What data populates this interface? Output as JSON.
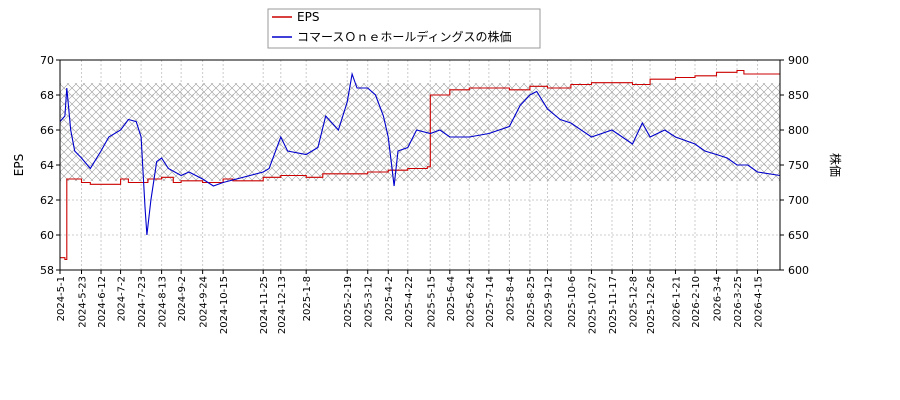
{
  "chart_data": {
    "type": "line",
    "title": "",
    "legend": {
      "placement": "top-center",
      "entries": [
        "EPS",
        "コマースＯｎｅホールディングスの株価"
      ]
    },
    "x_axis": {
      "start": "2024-5-1",
      "end": "2026-5-8",
      "ticks": [
        "2024-5-1",
        "2024-5-23",
        "2024-6-12",
        "2024-7-2",
        "2024-7-23",
        "2024-8-13",
        "2024-9-2",
        "2024-9-24",
        "2024-10-15",
        "2024-11-25",
        "2024-12-13",
        "2025-1-8",
        "2025-2-19",
        "2025-3-12",
        "2025-4-2",
        "2025-4-22",
        "2025-5-15",
        "2025-6-4",
        "2025-6-24",
        "2025-7-14",
        "2025-8-4",
        "2025-8-25",
        "2025-9-12",
        "2025-10-6",
        "2025-10-27",
        "2025-11-17",
        "2025-12-8",
        "2025-12-26",
        "2026-1-21",
        "2026-2-10",
        "2026-3-4",
        "2026-3-25",
        "2026-4-15"
      ]
    },
    "y_left": {
      "label": "EPS",
      "ylim": [
        58,
        70
      ],
      "ticks": [
        "58",
        "60",
        "62",
        "64",
        "66",
        "68",
        "70"
      ]
    },
    "y_right": {
      "label": "株価",
      "ylim": [
        600,
        900
      ],
      "ticks": [
        "600",
        "650",
        "700",
        "750",
        "800",
        "850",
        "900"
      ]
    },
    "band": {
      "axis": "right",
      "range": [
        727,
        867
      ]
    },
    "grid": true,
    "series": [
      {
        "name": "EPS",
        "axis": "left",
        "color": "#cc0000",
        "points": [
          [
            "2024-5-1",
            58.7
          ],
          [
            "2024-5-6",
            58.6
          ],
          [
            "2024-5-8",
            63.2
          ],
          [
            "2024-5-23",
            63.0
          ],
          [
            "2024-6-1",
            62.9
          ],
          [
            "2024-6-12",
            62.9
          ],
          [
            "2024-7-2",
            63.2
          ],
          [
            "2024-7-10",
            63.0
          ],
          [
            "2024-7-23",
            63.0
          ],
          [
            "2024-7-30",
            63.2
          ],
          [
            "2024-8-13",
            63.3
          ],
          [
            "2024-8-25",
            63.0
          ],
          [
            "2024-9-2",
            63.1
          ],
          [
            "2024-9-24",
            63.0
          ],
          [
            "2024-10-15",
            63.2
          ],
          [
            "2024-10-25",
            63.1
          ],
          [
            "2024-11-25",
            63.3
          ],
          [
            "2024-12-13",
            63.4
          ],
          [
            "2025-1-8",
            63.3
          ],
          [
            "2025-1-25",
            63.5
          ],
          [
            "2025-2-19",
            63.5
          ],
          [
            "2025-3-12",
            63.6
          ],
          [
            "2025-4-2",
            63.7
          ],
          [
            "2025-4-22",
            63.8
          ],
          [
            "2025-5-12",
            63.9
          ],
          [
            "2025-5-15",
            68.0
          ],
          [
            "2025-6-4",
            68.3
          ],
          [
            "2025-6-24",
            68.4
          ],
          [
            "2025-7-14",
            68.4
          ],
          [
            "2025-8-4",
            68.3
          ],
          [
            "2025-8-25",
            68.5
          ],
          [
            "2025-9-12",
            68.4
          ],
          [
            "2025-10-6",
            68.6
          ],
          [
            "2025-10-27",
            68.7
          ],
          [
            "2025-11-17",
            68.7
          ],
          [
            "2025-12-8",
            68.6
          ],
          [
            "2025-12-26",
            68.9
          ],
          [
            "2026-1-21",
            69.0
          ],
          [
            "2026-2-10",
            69.1
          ],
          [
            "2026-3-4",
            69.3
          ],
          [
            "2026-3-25",
            69.4
          ],
          [
            "2026-4-1",
            69.2
          ],
          [
            "2026-4-15",
            69.2
          ],
          [
            "2026-5-8",
            69.2
          ]
        ]
      },
      {
        "name": "コマースＯｎｅホールディングスの株価",
        "axis": "right",
        "color": "#0000cc",
        "points": [
          [
            "2024-5-1",
            812
          ],
          [
            "2024-5-6",
            820
          ],
          [
            "2024-5-8",
            860
          ],
          [
            "2024-5-12",
            800
          ],
          [
            "2024-5-16",
            770
          ],
          [
            "2024-5-23",
            760
          ],
          [
            "2024-6-1",
            745
          ],
          [
            "2024-6-12",
            770
          ],
          [
            "2024-6-20",
            790
          ],
          [
            "2024-7-2",
            800
          ],
          [
            "2024-7-10",
            815
          ],
          [
            "2024-7-18",
            812
          ],
          [
            "2024-7-23",
            790
          ],
          [
            "2024-7-27",
            690
          ],
          [
            "2024-7-29",
            650
          ],
          [
            "2024-8-2",
            700
          ],
          [
            "2024-8-8",
            755
          ],
          [
            "2024-8-13",
            760
          ],
          [
            "2024-8-20",
            745
          ],
          [
            "2024-9-2",
            735
          ],
          [
            "2024-9-10",
            740
          ],
          [
            "2024-9-24",
            730
          ],
          [
            "2024-10-5",
            720
          ],
          [
            "2024-10-15",
            725
          ],
          [
            "2024-11-25",
            740
          ],
          [
            "2024-12-1",
            745
          ],
          [
            "2024-12-13",
            790
          ],
          [
            "2024-12-20",
            770
          ],
          [
            "2025-1-8",
            765
          ],
          [
            "2025-1-20",
            775
          ],
          [
            "2025-1-28",
            820
          ],
          [
            "2025-2-10",
            800
          ],
          [
            "2025-2-19",
            840
          ],
          [
            "2025-2-24",
            880
          ],
          [
            "2025-3-1",
            860
          ],
          [
            "2025-3-12",
            860
          ],
          [
            "2025-3-20",
            850
          ],
          [
            "2025-3-28",
            820
          ],
          [
            "2025-4-2",
            790
          ],
          [
            "2025-4-5",
            755
          ],
          [
            "2025-4-8",
            720
          ],
          [
            "2025-4-12",
            770
          ],
          [
            "2025-4-22",
            775
          ],
          [
            "2025-5-1",
            800
          ],
          [
            "2025-5-15",
            795
          ],
          [
            "2025-5-25",
            800
          ],
          [
            "2025-6-4",
            790
          ],
          [
            "2025-6-24",
            790
          ],
          [
            "2025-7-14",
            795
          ],
          [
            "2025-8-4",
            805
          ],
          [
            "2025-8-15",
            835
          ],
          [
            "2025-8-25",
            850
          ],
          [
            "2025-9-1",
            855
          ],
          [
            "2025-9-12",
            830
          ],
          [
            "2025-9-25",
            815
          ],
          [
            "2025-10-6",
            810
          ],
          [
            "2025-10-27",
            790
          ],
          [
            "2025-11-17",
            800
          ],
          [
            "2025-12-8",
            780
          ],
          [
            "2025-12-18",
            810
          ],
          [
            "2025-12-26",
            790
          ],
          [
            "2026-1-10",
            800
          ],
          [
            "2026-1-21",
            790
          ],
          [
            "2026-2-10",
            780
          ],
          [
            "2026-2-20",
            770
          ],
          [
            "2026-3-4",
            765
          ],
          [
            "2026-3-15",
            760
          ],
          [
            "2026-3-25",
            750
          ],
          [
            "2026-4-5",
            750
          ],
          [
            "2026-4-15",
            740
          ],
          [
            "2026-5-8",
            735
          ]
        ]
      }
    ]
  }
}
